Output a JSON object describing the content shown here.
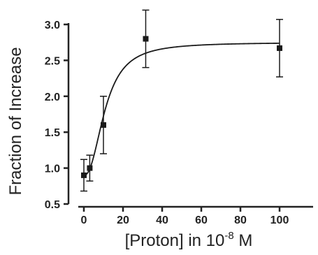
{
  "chart_data": {
    "type": "scatter",
    "title": "",
    "xlabel": "[Proton] in 10",
    "xlabel_superscript": "-8",
    "xlabel_suffix": "M",
    "ylabel": "Fraction of Increase",
    "xlim": [
      -5,
      118
    ],
    "ylim": [
      0.5,
      3.2
    ],
    "x_ticks": [
      0,
      20,
      40,
      60,
      80,
      100
    ],
    "x_tick_labels": [
      "0",
      "20",
      "40",
      "60",
      "80",
      "100"
    ],
    "y_ticks": [
      0.5,
      1.0,
      1.5,
      2.0,
      2.5,
      3.0
    ],
    "y_tick_labels": [
      "0.5",
      "1.0",
      "1.5",
      "2.0",
      "2.5",
      "3.0"
    ],
    "grid": false,
    "legend": "none",
    "colors": {
      "axis": "#222222",
      "marker": "#1a1a1a",
      "curve": "#1a1a1a"
    },
    "series": [
      {
        "points": [
          {
            "x": 0,
            "y": 0.9,
            "err": 0.22
          },
          {
            "x": 3,
            "y": 1.0,
            "err": 0.18
          },
          {
            "x": 10,
            "y": 1.6,
            "err": 0.4
          },
          {
            "x": 31.6,
            "y": 2.8,
            "err": 0.4
          },
          {
            "x": 100,
            "y": 2.67,
            "err": 0.4
          }
        ]
      }
    ],
    "fit_curve": {
      "model": "sigmoid",
      "bottom": 0.9,
      "top": 2.75,
      "ec50": 11,
      "hill": 2.3,
      "x_range": [
        0,
        100
      ]
    }
  }
}
